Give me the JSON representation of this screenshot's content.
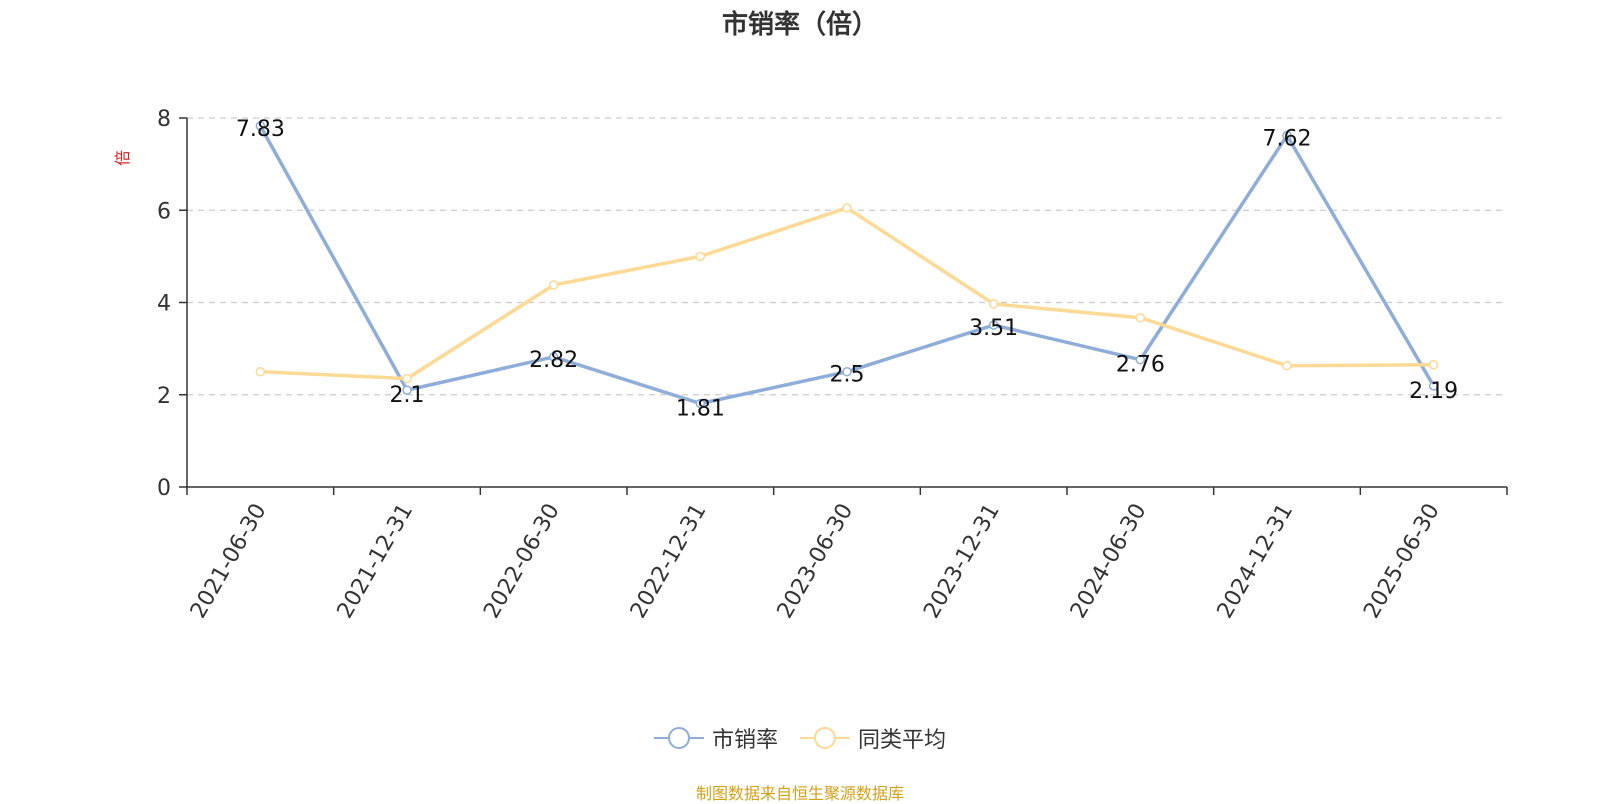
{
  "chart_data": {
    "type": "line",
    "title": "市销率（倍）",
    "ylabel": "倍",
    "xlabel": "",
    "categories": [
      "2021-06-30",
      "2021-12-31",
      "2022-06-30",
      "2022-12-31",
      "2023-06-30",
      "2023-12-31",
      "2024-06-30",
      "2024-12-31",
      "2025-06-30"
    ],
    "ylim": [
      0,
      8
    ],
    "yticks": [
      0,
      2,
      4,
      6,
      8
    ],
    "grid": true,
    "legend_position": "bottom",
    "series": [
      {
        "name": "市销率",
        "color": "#8eadd9",
        "values": [
          7.83,
          2.1,
          2.82,
          1.81,
          2.5,
          3.51,
          2.76,
          7.62,
          2.19
        ],
        "data_labels": true
      },
      {
        "name": "同类平均",
        "color": "#fcd995",
        "values": [
          2.5,
          2.35,
          4.38,
          5.0,
          6.05,
          3.97,
          3.67,
          2.63,
          2.65
        ],
        "data_labels": false
      }
    ]
  },
  "source_note": "制图数据来自恒生聚源数据库"
}
